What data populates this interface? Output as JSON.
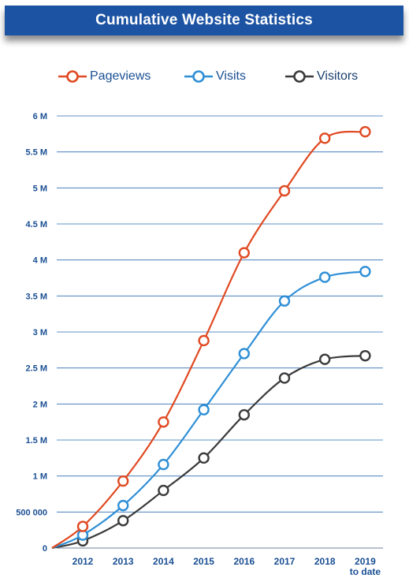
{
  "title": "Cumulative Website Statistics",
  "chart_data": {
    "type": "line",
    "title": "Cumulative Website Statistics",
    "categories": [
      "2012",
      "2013",
      "2014",
      "2015",
      "2016",
      "2017",
      "2018",
      "2019 to date"
    ],
    "category_lines": [
      [
        "2012"
      ],
      [
        "2013"
      ],
      [
        "2014"
      ],
      [
        "2015"
      ],
      [
        "2016"
      ],
      [
        "2017"
      ],
      [
        "2018"
      ],
      [
        "2019",
        "to date"
      ]
    ],
    "y_ticks": [
      {
        "value": 0,
        "label": "0"
      },
      {
        "value": 500000,
        "label": "500 000"
      },
      {
        "value": 1000000,
        "label": "1 M"
      },
      {
        "value": 1500000,
        "label": "1.5 M"
      },
      {
        "value": 2000000,
        "label": "2 M"
      },
      {
        "value": 2500000,
        "label": "2.5 M"
      },
      {
        "value": 3000000,
        "label": "3 M"
      },
      {
        "value": 3500000,
        "label": "3.5 M"
      },
      {
        "value": 4000000,
        "label": "4 M"
      },
      {
        "value": 4500000,
        "label": "4.5 M"
      },
      {
        "value": 5000000,
        "label": "5 M"
      },
      {
        "value": 5500000,
        "label": "5.5 M"
      },
      {
        "value": 6000000,
        "label": "6 M"
      }
    ],
    "ylim": [
      0,
      6000000
    ],
    "grid": true,
    "legend_position": "top",
    "series": [
      {
        "name": "Pageviews",
        "color": "#e04a22",
        "values": [
          300000,
          930000,
          1750000,
          2880000,
          4100000,
          4960000,
          5690000,
          5780000
        ]
      },
      {
        "name": "Visits",
        "color": "#2f8fd6",
        "values": [
          180000,
          590000,
          1160000,
          1920000,
          2700000,
          3430000,
          3760000,
          3840000
        ]
      },
      {
        "name": "Visitors",
        "color": "#3b3b3b",
        "values": [
          100000,
          380000,
          800000,
          1250000,
          1850000,
          2360000,
          2620000,
          2670000
        ]
      }
    ]
  }
}
